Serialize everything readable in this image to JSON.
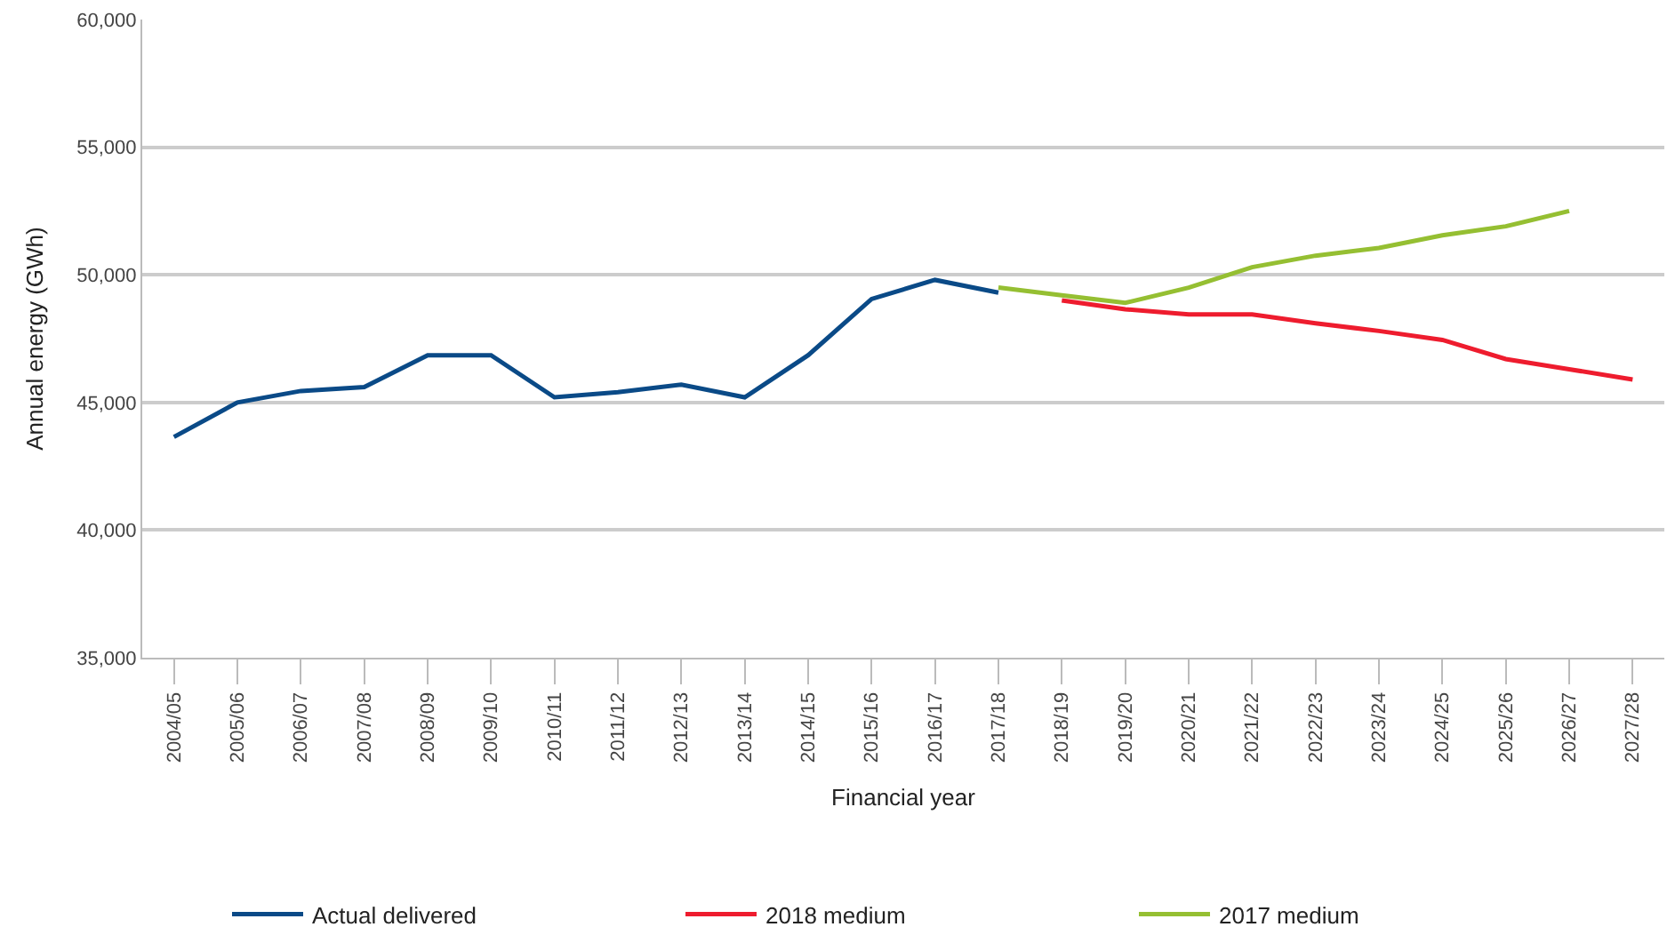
{
  "chart_data": {
    "type": "line",
    "xlabel": "Financial year",
    "ylabel": "Annual energy (GWh)",
    "categories": [
      "2004/05",
      "2005/06",
      "2006/07",
      "2007/08",
      "2008/09",
      "2009/10",
      "2010/11",
      "2011/12",
      "2012/13",
      "2013/14",
      "2014/15",
      "2015/16",
      "2016/17",
      "2017/18",
      "2018/19",
      "2019/20",
      "2020/21",
      "2021/22",
      "2022/23",
      "2023/24",
      "2024/25",
      "2025/26",
      "2026/27",
      "2027/28"
    ],
    "series": [
      {
        "name": "Actual delivered",
        "color": "#0a4a87",
        "values": [
          43650,
          45000,
          45450,
          45600,
          46850,
          46850,
          45200,
          45400,
          45700,
          45200,
          46850,
          49050,
          49800,
          49300,
          null,
          null,
          null,
          null,
          null,
          null,
          null,
          null,
          null,
          null
        ]
      },
      {
        "name": "2018 medium",
        "color": "#ee1c2e",
        "values": [
          null,
          null,
          null,
          null,
          null,
          null,
          null,
          null,
          null,
          null,
          null,
          null,
          null,
          null,
          49000,
          48650,
          48450,
          48450,
          48100,
          47800,
          47450,
          46700,
          46300,
          45900
        ]
      },
      {
        "name": "2017 medium",
        "color": "#95bf32",
        "values": [
          null,
          null,
          null,
          null,
          null,
          null,
          null,
          null,
          null,
          null,
          null,
          null,
          null,
          49500,
          49200,
          48900,
          49500,
          50300,
          50750,
          51050,
          51550,
          51900,
          52500,
          null
        ]
      }
    ],
    "ylim": [
      35000,
      60000
    ],
    "yticks": [
      {
        "value": 35000,
        "label": "35,000"
      },
      {
        "value": 40000,
        "label": "40,000"
      },
      {
        "value": 45000,
        "label": "45,000"
      },
      {
        "value": 50000,
        "label": "50,000"
      },
      {
        "value": 55000,
        "label": "55,000"
      },
      {
        "value": 60000,
        "label": "60,000"
      }
    ],
    "grid": "y",
    "legend": "bottom",
    "marker": "none",
    "line_style": "solid"
  }
}
